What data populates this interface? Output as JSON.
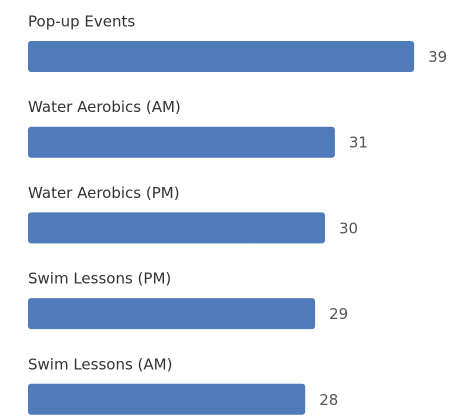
{
  "chart_data": {
    "type": "bar",
    "orientation": "horizontal",
    "categories": [
      "Pop-up Events",
      "Water Aerobics (AM)",
      "Water Aerobics (PM)",
      "Swim Lessons (PM)",
      "Swim Lessons (AM)"
    ],
    "values": [
      39,
      31,
      30,
      29,
      28
    ],
    "color": "#4f7bbb",
    "xlim": [
      0,
      40
    ]
  }
}
